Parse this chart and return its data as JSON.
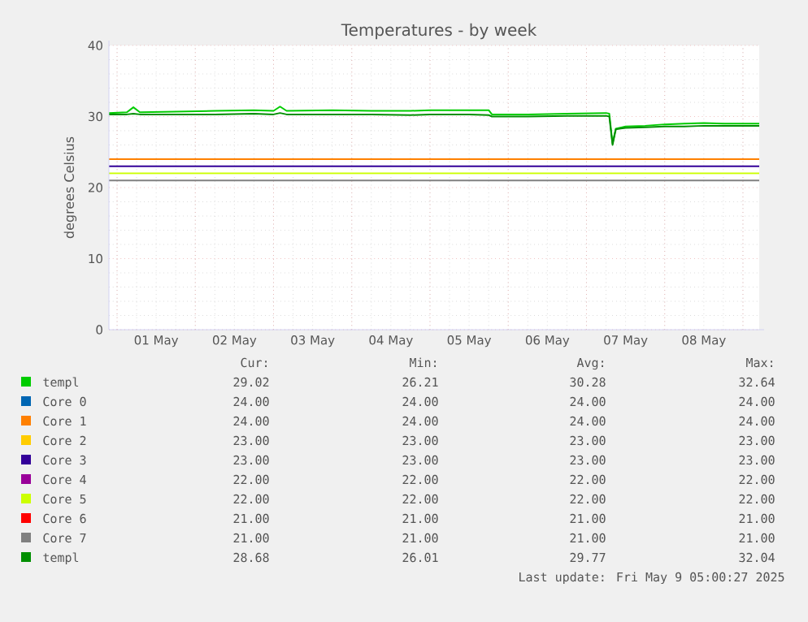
{
  "chart_data": {
    "type": "line",
    "title": "Temperatures - by week",
    "ylabel": "degrees Celsius",
    "xlim": [
      "2025-04-30T21:30",
      "2025-05-09T05:00"
    ],
    "xticks": [
      {
        "value": "2025-05-01T12:00",
        "label": "01 May"
      },
      {
        "value": "2025-05-02T12:00",
        "label": "02 May"
      },
      {
        "value": "2025-05-03T12:00",
        "label": "03 May"
      },
      {
        "value": "2025-05-04T12:00",
        "label": "04 May"
      },
      {
        "value": "2025-05-05T12:00",
        "label": "05 May"
      },
      {
        "value": "2025-05-06T12:00",
        "label": "06 May"
      },
      {
        "value": "2025-05-07T12:00",
        "label": "07 May"
      },
      {
        "value": "2025-05-08T12:00",
        "label": "08 May"
      }
    ],
    "ylim": [
      0,
      40
    ],
    "yticks": [
      0,
      10,
      20,
      30,
      40
    ],
    "grid": true,
    "legend": "bottom",
    "marker": "none",
    "line_style": "solid",
    "x": [
      "2025-04-30T21:30",
      "2025-05-01T03:00",
      "2025-05-01T05:00",
      "2025-05-01T07:00",
      "2025-05-01T18:00",
      "2025-05-02T06:00",
      "2025-05-02T18:00",
      "2025-05-03T00:00",
      "2025-05-03T02:00",
      "2025-05-03T04:00",
      "2025-05-03T18:00",
      "2025-05-04T06:00",
      "2025-05-04T18:00",
      "2025-05-05T00:00",
      "2025-05-05T12:00",
      "2025-05-05T18:00",
      "2025-05-05T19:00",
      "2025-05-06T06:00",
      "2025-05-06T18:00",
      "2025-05-07T06:00",
      "2025-05-07T07:00",
      "2025-05-07T08:00",
      "2025-05-07T09:00",
      "2025-05-07T12:00",
      "2025-05-07T18:00",
      "2025-05-08T00:00",
      "2025-05-08T06:00",
      "2025-05-08T12:00",
      "2025-05-08T18:00",
      "2025-05-09T00:00",
      "2025-05-09T05:00"
    ],
    "series": [
      {
        "name": "templ",
        "color": "#00cc00",
        "values": [
          30.5,
          30.6,
          31.3,
          30.6,
          30.7,
          30.8,
          30.9,
          30.8,
          31.4,
          30.8,
          30.9,
          30.8,
          30.8,
          30.9,
          30.9,
          30.9,
          30.3,
          30.3,
          30.4,
          30.5,
          30.4,
          26.2,
          28.3,
          28.6,
          28.7,
          28.9,
          29.0,
          29.1,
          29.0,
          29.0,
          29.0
        ]
      },
      {
        "name": "Core 0",
        "color": "#0066b3",
        "values": [
          null,
          null,
          null,
          null,
          null,
          null,
          null,
          null,
          null,
          null,
          null,
          null,
          null,
          null,
          null,
          null,
          null,
          null,
          null,
          null,
          null,
          null,
          null,
          null,
          null,
          null,
          null,
          null,
          null,
          null,
          null
        ]
      },
      {
        "name": "Core 1",
        "color": "#ff8000",
        "x": [
          "2025-04-30T21:30",
          "2025-05-09T05:00"
        ],
        "values": [
          24,
          24
        ]
      },
      {
        "name": "Core 2",
        "color": "#ffcc00",
        "values": [
          null,
          null,
          null,
          null,
          null,
          null,
          null,
          null,
          null,
          null,
          null,
          null,
          null,
          null,
          null,
          null,
          null,
          null,
          null,
          null,
          null,
          null,
          null,
          null,
          null,
          null,
          null,
          null,
          null,
          null,
          null
        ]
      },
      {
        "name": "Core 3",
        "color": "#330099",
        "x": [
          "2025-04-30T21:30",
          "2025-05-09T05:00"
        ],
        "values": [
          23,
          23
        ]
      },
      {
        "name": "Core 4",
        "color": "#990099",
        "values": [
          null,
          null,
          null,
          null,
          null,
          null,
          null,
          null,
          null,
          null,
          null,
          null,
          null,
          null,
          null,
          null,
          null,
          null,
          null,
          null,
          null,
          null,
          null,
          null,
          null,
          null,
          null,
          null,
          null,
          null,
          null
        ]
      },
      {
        "name": "Core 5",
        "color": "#ccff00",
        "x": [
          "2025-04-30T21:30",
          "2025-05-09T05:00"
        ],
        "values": [
          22,
          22
        ]
      },
      {
        "name": "Core 6",
        "color": "#ff0000",
        "values": [
          null,
          null,
          null,
          null,
          null,
          null,
          null,
          null,
          null,
          null,
          null,
          null,
          null,
          null,
          null,
          null,
          null,
          null,
          null,
          null,
          null,
          null,
          null,
          null,
          null,
          null,
          null,
          null,
          null,
          null,
          null
        ]
      },
      {
        "name": "Core 7",
        "color": "#808080",
        "x": [
          "2025-04-30T21:30",
          "2025-05-09T05:00"
        ],
        "values": [
          21,
          21
        ]
      },
      {
        "name": "templ",
        "color": "#008f00",
        "values": [
          30.3,
          30.3,
          30.4,
          30.3,
          30.3,
          30.3,
          30.4,
          30.3,
          30.5,
          30.3,
          30.3,
          30.3,
          30.2,
          30.3,
          30.3,
          30.2,
          30.0,
          30.0,
          30.1,
          30.1,
          30.0,
          26.0,
          28.2,
          28.4,
          28.5,
          28.6,
          28.6,
          28.7,
          28.7,
          28.7,
          28.7
        ]
      }
    ],
    "annotations": [
      "Cur:",
      "Min:",
      "Avg:",
      "Max:",
      "29.02",
      "26.21",
      "30.28",
      "32.64",
      "24.00",
      "24.00",
      "24.00",
      "24.00",
      "24.00",
      "24.00",
      "24.00",
      "24.00",
      "23.00",
      "23.00",
      "23.00",
      "23.00",
      "23.00",
      "23.00",
      "23.00",
      "23.00",
      "22.00",
      "22.00",
      "22.00",
      "22.00",
      "22.00",
      "22.00",
      "22.00",
      "22.00",
      "21.00",
      "21.00",
      "21.00",
      "21.00",
      "21.00",
      "21.00",
      "21.00",
      "21.00",
      "28.68",
      "26.01",
      "29.77",
      "32.04",
      "Last update: Fri May  9 05:00:27 2025"
    ]
  }
}
